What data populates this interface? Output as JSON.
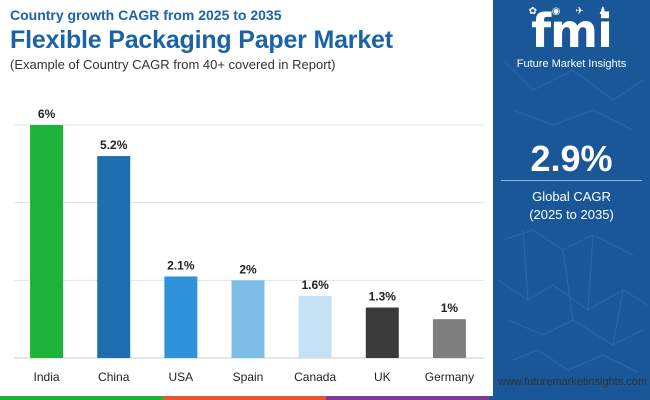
{
  "header": {
    "subtitle": "Country growth CAGR from 2025 to 2035",
    "title": "Flexible Packaging Paper Market",
    "note": "(Example of Country CAGR from 40+ covered in Report)"
  },
  "panel": {
    "logo_mark": "fmi",
    "logo_text": "Future Market Insights",
    "cagr_value": "2.9%",
    "cagr_label_1": "Global CAGR",
    "cagr_label_2": "(2025 to 2035)",
    "bg_color": "#1a5799"
  },
  "website": "www.futuremarketinsights.com",
  "chart_data": {
    "type": "bar",
    "categories": [
      "India",
      "China",
      "USA",
      "Spain",
      "Canada",
      "UK",
      "Germany"
    ],
    "values": [
      6,
      5.2,
      2.1,
      2,
      1.6,
      1.3,
      1
    ],
    "labels": [
      "6%",
      "5.2%",
      "2.1%",
      "2%",
      "1.6%",
      "1.3%",
      "1%"
    ],
    "colors": [
      "#1db33a",
      "#1f6fb0",
      "#2f93dc",
      "#7ebde8",
      "#c4e1f5",
      "#3a3a3a",
      "#7f7f7f"
    ],
    "ylim": [
      0,
      6
    ],
    "grid": true,
    "title": "",
    "xlabel": "",
    "ylabel": ""
  },
  "footer_colors": [
    "#1db33a",
    "#e8572d",
    "#7d3c98",
    "#1a5799"
  ]
}
